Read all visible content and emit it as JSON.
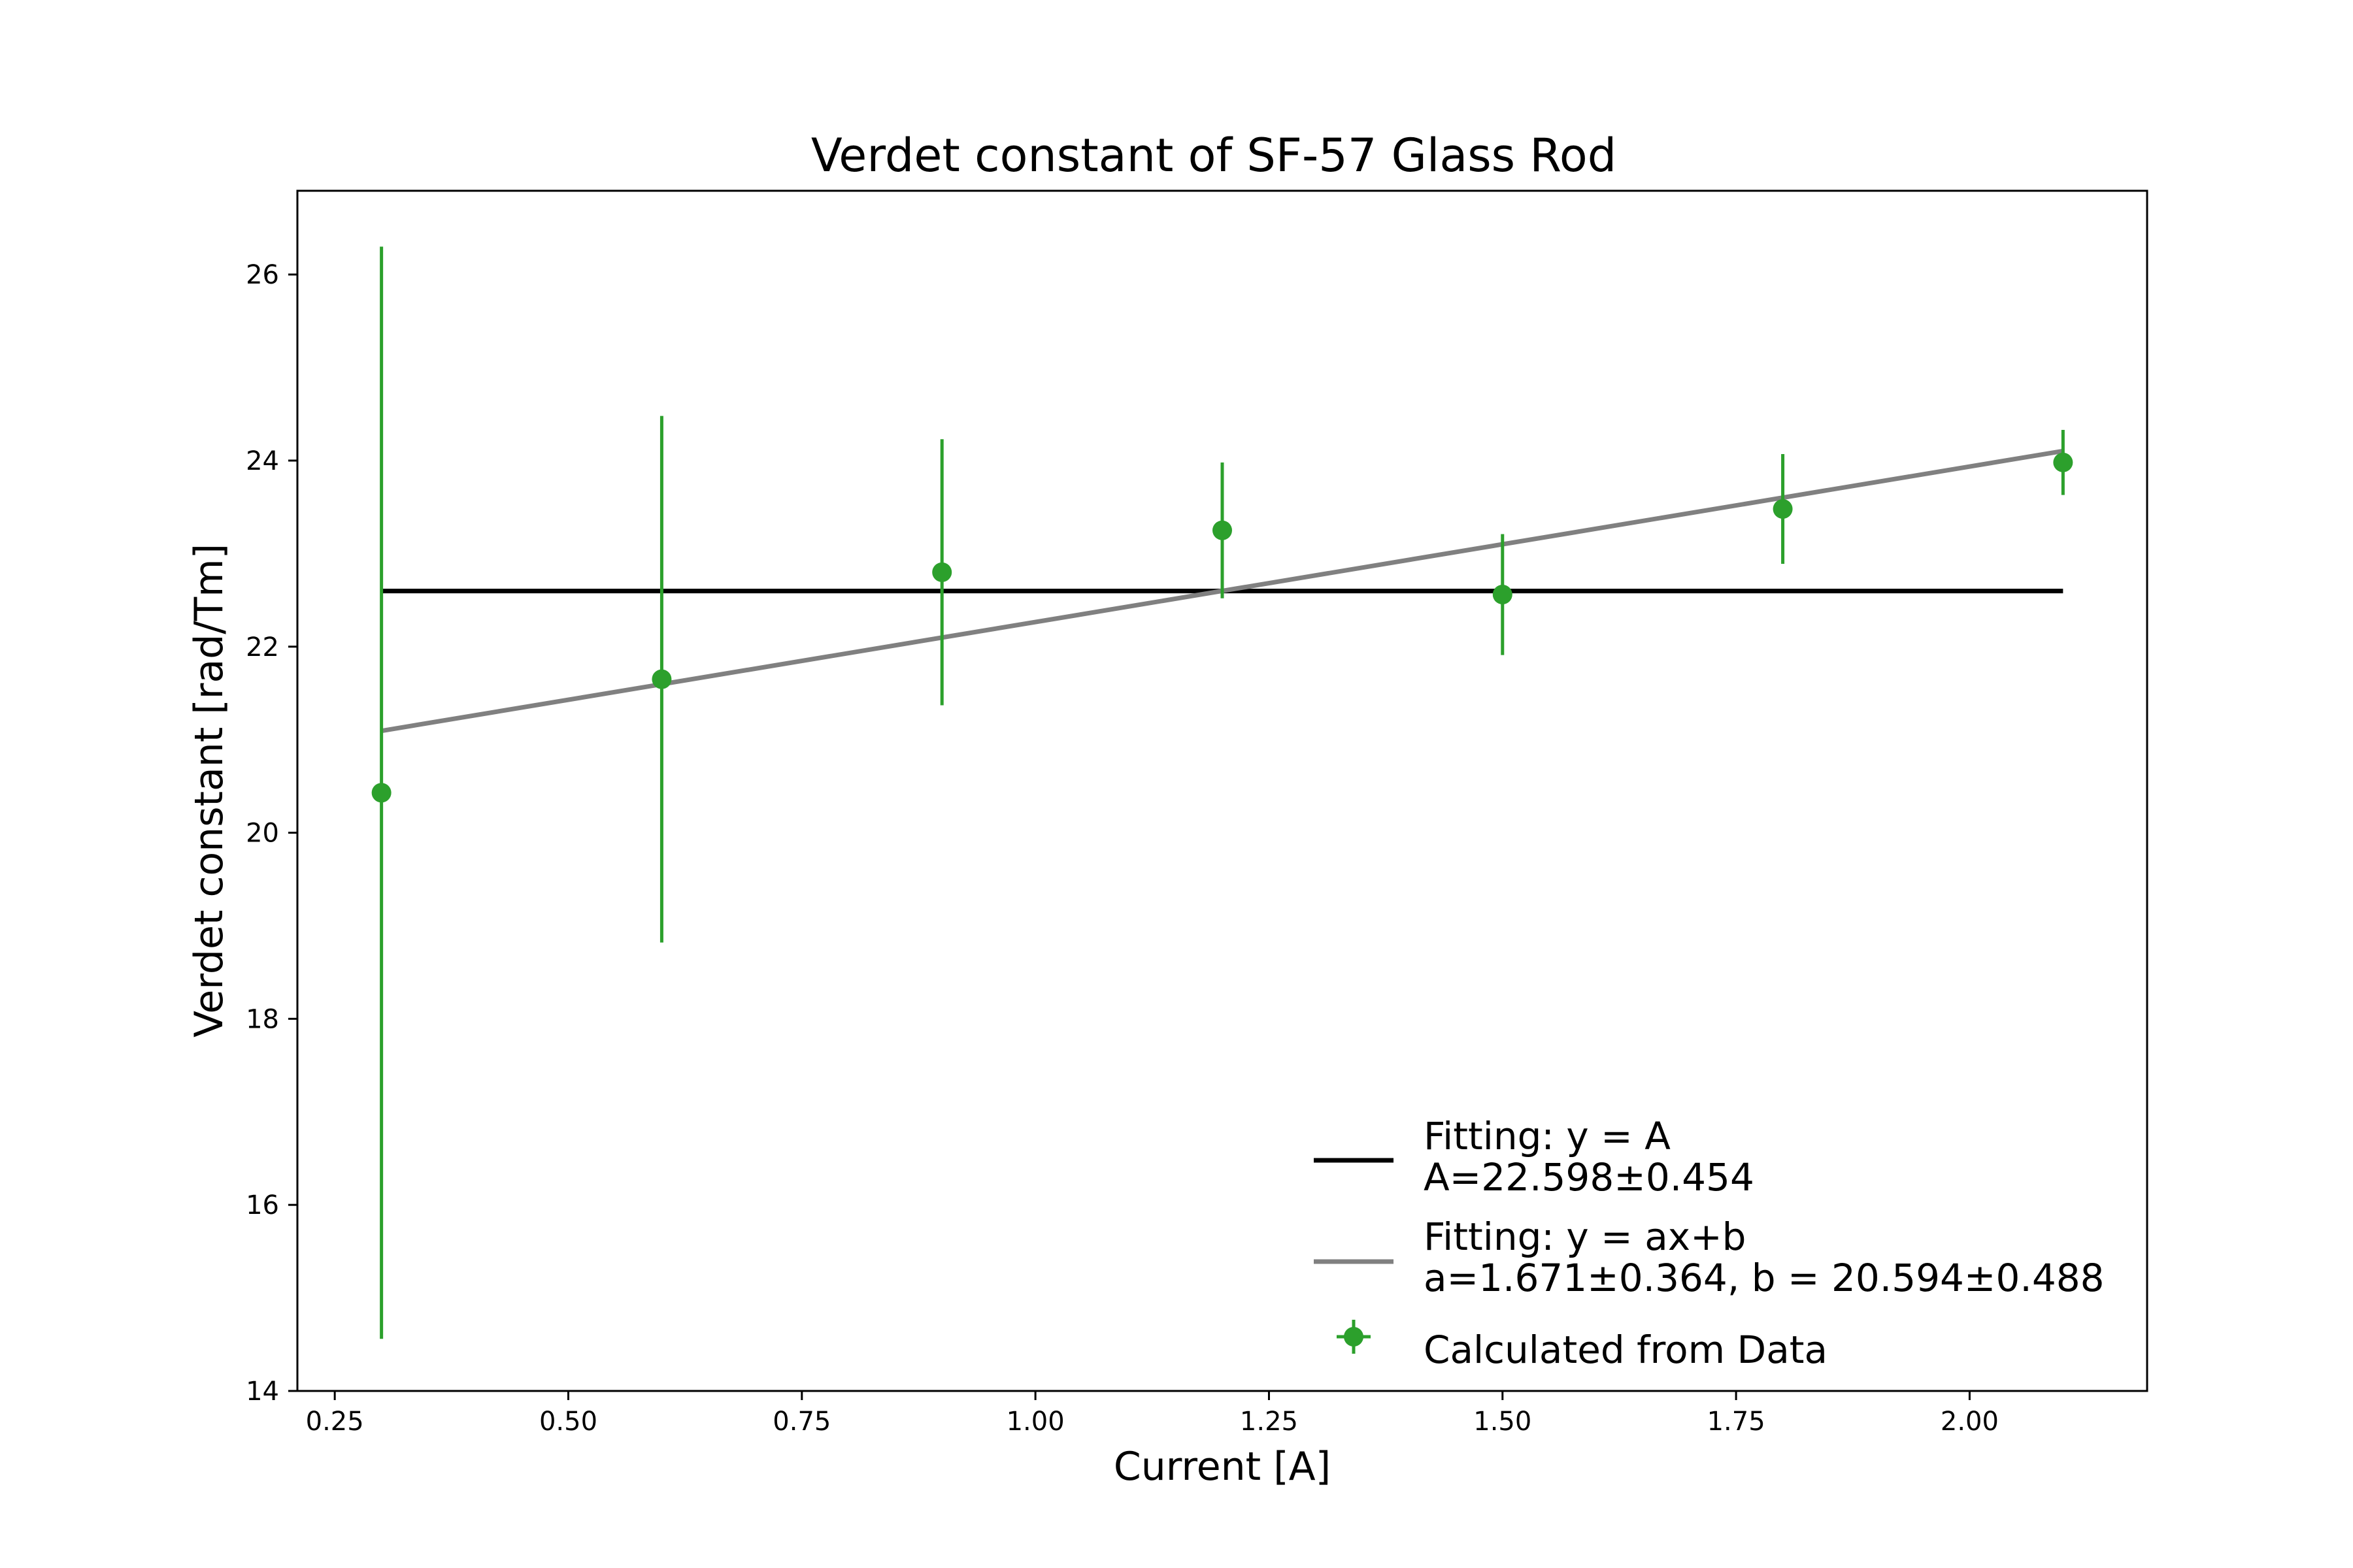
{
  "chart_data": {
    "type": "scatter",
    "title": "Verdet constant of SF-57 Glass Rod",
    "xlabel": "Current [A]",
    "ylabel": "Verdet constant [rad/Tm]",
    "xlim": [
      0.21,
      2.19
    ],
    "ylim": [
      14,
      26.9
    ],
    "xticks": [
      "0.25",
      "0.50",
      "0.75",
      "1.00",
      "1.25",
      "1.50",
      "1.75",
      "2.00"
    ],
    "yticks": [
      "14",
      "16",
      "18",
      "20",
      "22",
      "24",
      "26"
    ],
    "grid": false,
    "legend_position": "lower-right",
    "series": [
      {
        "name": "Fitting: y = A\nA=22.598±0.454",
        "kind": "line",
        "color": "#000000",
        "x": [
          0.3,
          2.1
        ],
        "y": [
          22.598,
          22.598
        ]
      },
      {
        "name": "Fitting: y = ax+b\na=1.671±0.364, b = 20.594±0.488",
        "kind": "line",
        "color": "#808080",
        "x": [
          0.3,
          2.1
        ],
        "y": [
          21.095,
          24.103
        ]
      },
      {
        "name": "Calculated from Data",
        "kind": "errorbar",
        "color": "#2ca02c",
        "x": [
          0.3,
          0.6,
          0.9,
          1.2,
          1.5,
          1.8,
          2.1
        ],
        "y": [
          20.43,
          21.65,
          22.8,
          23.25,
          22.56,
          23.48,
          23.98
        ],
        "yerr": [
          5.87,
          2.83,
          1.43,
          0.73,
          0.65,
          0.59,
          0.35
        ]
      }
    ]
  }
}
